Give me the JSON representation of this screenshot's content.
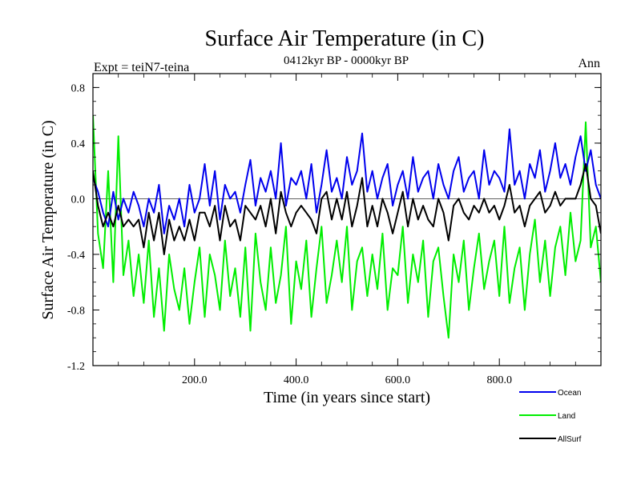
{
  "chart_data": {
    "type": "line",
    "title": "Surface Air Temperature (in C)",
    "subtitle": "0412kyr BP - 0000kyr BP",
    "left_label": "Expt = teiN7-teina",
    "right_label": "Ann",
    "xlabel": "Time (in years since start)",
    "ylabel": "Surface Air Temperature (in C)",
    "xlim": [
      0,
      1000
    ],
    "ylim": [
      -1.2,
      0.9
    ],
    "x_ticks": [
      {
        "value": 200,
        "label": "200.0"
      },
      {
        "value": 400,
        "label": "400.0"
      },
      {
        "value": 600,
        "label": "600.0"
      },
      {
        "value": 800,
        "label": "800.0"
      }
    ],
    "y_ticks": [
      {
        "value": 0.8,
        "label": "0.8"
      },
      {
        "value": 0.4,
        "label": "0.4"
      },
      {
        "value": 0.0,
        "label": "0.0"
      },
      {
        "value": -0.4,
        "label": "-0.4"
      },
      {
        "value": -0.8,
        "label": "-0.8"
      },
      {
        "value": -1.2,
        "label": "-1.2"
      }
    ],
    "zero_line": 0,
    "legend_position": "bottom-right",
    "series": [
      {
        "name": "Land",
        "color": "#00ee00",
        "x": [
          0,
          10,
          20,
          30,
          40,
          50,
          60,
          70,
          80,
          90,
          100,
          110,
          120,
          130,
          140,
          150,
          160,
          170,
          180,
          190,
          200,
          210,
          220,
          230,
          240,
          250,
          260,
          270,
          280,
          290,
          300,
          310,
          320,
          330,
          340,
          350,
          360,
          370,
          380,
          390,
          400,
          410,
          420,
          430,
          440,
          450,
          460,
          470,
          480,
          490,
          500,
          510,
          520,
          530,
          540,
          550,
          560,
          570,
          580,
          590,
          600,
          610,
          620,
          630,
          640,
          650,
          660,
          670,
          680,
          690,
          700,
          710,
          720,
          730,
          740,
          750,
          760,
          770,
          780,
          790,
          800,
          810,
          820,
          830,
          840,
          850,
          860,
          870,
          880,
          890,
          900,
          910,
          920,
          930,
          940,
          950,
          960,
          970,
          980,
          990,
          1000
        ],
        "values": [
          0.6,
          -0.25,
          -0.5,
          0.2,
          -0.6,
          0.45,
          -0.55,
          -0.3,
          -0.7,
          -0.4,
          -0.75,
          -0.3,
          -0.85,
          -0.5,
          -0.95,
          -0.4,
          -0.65,
          -0.8,
          -0.5,
          -0.9,
          -0.6,
          -0.35,
          -0.85,
          -0.4,
          -0.55,
          -0.8,
          -0.3,
          -0.7,
          -0.5,
          -0.85,
          -0.35,
          -0.95,
          -0.25,
          -0.6,
          -0.8,
          -0.35,
          -0.75,
          -0.55,
          -0.2,
          -0.9,
          -0.45,
          -0.65,
          -0.3,
          -0.85,
          -0.5,
          -0.2,
          -0.75,
          -0.55,
          -0.3,
          -0.6,
          -0.2,
          -0.8,
          -0.45,
          -0.35,
          -0.7,
          -0.4,
          -0.65,
          -0.25,
          -0.8,
          -0.5,
          -0.55,
          -0.2,
          -0.75,
          -0.4,
          -0.6,
          -0.3,
          -0.85,
          -0.45,
          -0.35,
          -0.7,
          -1.0,
          -0.4,
          -0.6,
          -0.3,
          -0.8,
          -0.5,
          -0.25,
          -0.65,
          -0.45,
          -0.3,
          -0.7,
          -0.2,
          -0.75,
          -0.5,
          -0.35,
          -0.8,
          -0.4,
          -0.15,
          -0.6,
          -0.3,
          -0.7,
          -0.35,
          -0.2,
          -0.55,
          -0.1,
          -0.45,
          -0.3,
          0.55,
          -0.35,
          -0.2,
          -0.6
        ]
      },
      {
        "name": "Ocean",
        "color": "#0000ee",
        "x": [
          0,
          10,
          20,
          30,
          40,
          50,
          60,
          70,
          80,
          90,
          100,
          110,
          120,
          130,
          140,
          150,
          160,
          170,
          180,
          190,
          200,
          210,
          220,
          230,
          240,
          250,
          260,
          270,
          280,
          290,
          300,
          310,
          320,
          330,
          340,
          350,
          360,
          370,
          380,
          390,
          400,
          410,
          420,
          430,
          440,
          450,
          460,
          470,
          480,
          490,
          500,
          510,
          520,
          530,
          540,
          550,
          560,
          570,
          580,
          590,
          600,
          610,
          620,
          630,
          640,
          650,
          660,
          670,
          680,
          690,
          700,
          710,
          720,
          730,
          740,
          750,
          760,
          770,
          780,
          790,
          800,
          810,
          820,
          830,
          840,
          850,
          860,
          870,
          880,
          890,
          900,
          910,
          920,
          930,
          940,
          950,
          960,
          970,
          980,
          990,
          1000
        ],
        "values": [
          0.15,
          0.05,
          -0.1,
          -0.2,
          0.05,
          -0.15,
          0.0,
          -0.1,
          0.05,
          -0.05,
          -0.2,
          0.0,
          -0.1,
          0.1,
          -0.25,
          -0.05,
          -0.15,
          0.0,
          -0.2,
          0.1,
          -0.1,
          0.0,
          0.25,
          -0.05,
          0.2,
          -0.15,
          0.1,
          0.0,
          0.05,
          -0.1,
          0.1,
          0.28,
          -0.05,
          0.15,
          0.05,
          0.2,
          0.0,
          0.4,
          -0.05,
          0.15,
          0.1,
          0.2,
          0.0,
          0.25,
          -0.1,
          0.1,
          0.35,
          0.05,
          0.15,
          0.0,
          0.3,
          0.1,
          0.2,
          0.47,
          0.05,
          0.2,
          0.0,
          0.15,
          0.25,
          -0.05,
          0.1,
          0.2,
          0.0,
          0.3,
          0.05,
          0.15,
          0.2,
          0.0,
          0.25,
          0.1,
          0.0,
          0.2,
          0.3,
          0.05,
          0.15,
          0.2,
          0.0,
          0.35,
          0.1,
          0.2,
          0.15,
          0.05,
          0.5,
          0.1,
          0.2,
          0.0,
          0.25,
          0.15,
          0.35,
          0.05,
          0.2,
          0.4,
          0.15,
          0.25,
          0.1,
          0.3,
          0.45,
          0.2,
          0.35,
          0.1,
          0.0
        ]
      },
      {
        "name": "AllSurf",
        "color": "#000000",
        "x": [
          0,
          10,
          20,
          30,
          40,
          50,
          60,
          70,
          80,
          90,
          100,
          110,
          120,
          130,
          140,
          150,
          160,
          170,
          180,
          190,
          200,
          210,
          220,
          230,
          240,
          250,
          260,
          270,
          280,
          290,
          300,
          310,
          320,
          330,
          340,
          350,
          360,
          370,
          380,
          390,
          400,
          410,
          420,
          430,
          440,
          450,
          460,
          470,
          480,
          490,
          500,
          510,
          520,
          530,
          540,
          550,
          560,
          570,
          580,
          590,
          600,
          610,
          620,
          630,
          640,
          650,
          660,
          670,
          680,
          690,
          700,
          710,
          720,
          730,
          740,
          750,
          760,
          770,
          780,
          790,
          800,
          810,
          820,
          830,
          840,
          850,
          860,
          870,
          880,
          890,
          900,
          910,
          920,
          930,
          940,
          950,
          960,
          970,
          980,
          990,
          1000
        ],
        "values": [
          0.2,
          -0.05,
          -0.2,
          -0.1,
          -0.2,
          -0.05,
          -0.2,
          -0.15,
          -0.2,
          -0.15,
          -0.35,
          -0.1,
          -0.3,
          -0.1,
          -0.4,
          -0.15,
          -0.3,
          -0.2,
          -0.3,
          -0.15,
          -0.3,
          -0.1,
          -0.1,
          -0.2,
          -0.05,
          -0.3,
          -0.05,
          -0.2,
          -0.15,
          -0.3,
          -0.05,
          -0.1,
          -0.15,
          -0.05,
          -0.2,
          0.0,
          -0.25,
          0.05,
          -0.1,
          -0.2,
          -0.1,
          -0.05,
          -0.1,
          -0.15,
          -0.25,
          0.0,
          0.05,
          -0.15,
          0.0,
          -0.15,
          0.05,
          -0.2,
          -0.05,
          0.15,
          -0.2,
          -0.05,
          -0.2,
          0.0,
          -0.1,
          -0.25,
          -0.1,
          0.05,
          -0.2,
          0.0,
          -0.15,
          -0.05,
          -0.15,
          -0.2,
          0.0,
          -0.1,
          -0.3,
          -0.05,
          0.0,
          -0.1,
          -0.15,
          -0.05,
          -0.1,
          0.0,
          -0.1,
          -0.05,
          -0.15,
          -0.05,
          0.1,
          -0.1,
          -0.05,
          -0.2,
          -0.05,
          0.0,
          0.05,
          -0.1,
          -0.05,
          0.05,
          -0.05,
          0.0,
          0.0,
          0.0,
          0.1,
          0.25,
          0.0,
          -0.05,
          -0.25
        ]
      }
    ]
  }
}
